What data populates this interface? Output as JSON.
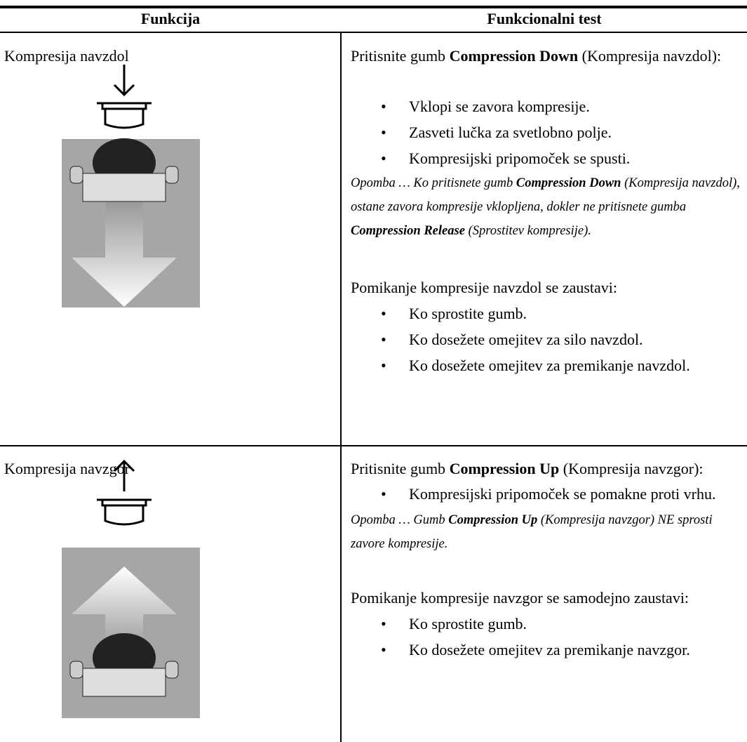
{
  "header": {
    "columns": [
      "Funkcija",
      "Funkcionalni test"
    ]
  },
  "rows": [
    {
      "function": "Kompresija navzdol",
      "intro": [
        "Pritisnite gumb ",
        "Compression Down",
        " (Kompresija navzdol):"
      ],
      "bullets": [
        "Vklopi se zavora kompresije.",
        "Zasveti lučka za svetlobno polje.",
        "Kompresijski pripomoček se spusti."
      ],
      "note": [
        "Opomba … Ko pritisnete gumb ",
        "Compression Down",
        " (Kompresija navzdol), ostane zavora kompresije vklopljena, dokler ne pritisnete gumba ",
        "Compression Release",
        " (Sprostitev kompresije)."
      ],
      "stop": "Pomikanje kompresije navzdol se zaustavi:",
      "stop_bullets": [
        "Ko sprostite gumb.",
        "Ko dosežete omejitev za silo navzdol.",
        "Ko dosežete omejitev za premikanje navzdol."
      ]
    },
    {
      "function": "Kompresija navzgor",
      "intro": [
        "Pritisnite gumb ",
        "Compression Up",
        " (Kompresija navzgor):"
      ],
      "bullets": [
        "Kompresijski pripomoček se pomakne proti vrhu."
      ],
      "note": [
        "Opomba … Gumb ",
        "Compression Up",
        " (Kompresija navzgor) NE sprosti zavore kompresije."
      ],
      "stop": "Pomikanje kompresije navzgor se samodejno zaustavi:",
      "stop_bullets": [
        "Ko sprostite gumb.",
        "Ko dosežete omejitev za premikanje navzgor."
      ]
    }
  ]
}
